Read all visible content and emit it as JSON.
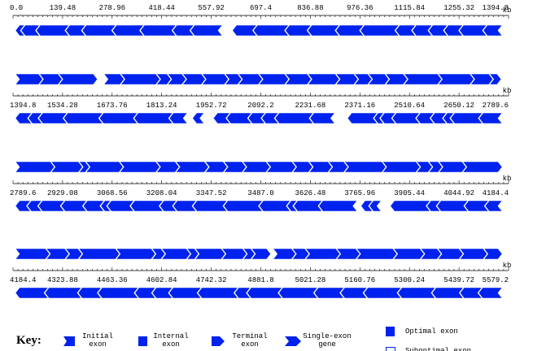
{
  "tracks": [
    {
      "unit": "kb",
      "ticks": [
        "0.0",
        "139.48",
        "278.96",
        "418.44",
        "557.92",
        "697.4",
        "836.88",
        "976.36",
        "1115.84",
        "1255.32",
        "1394.8"
      ]
    },
    {
      "unit": "kb",
      "ticks": [
        "1394.8",
        "1534.28",
        "1673.76",
        "1813.24",
        "1952.72",
        "2092.2",
        "2231.68",
        "2371.16",
        "2510.64",
        "2650.12",
        "2789.6"
      ]
    },
    {
      "unit": "kb",
      "ticks": [
        "2789.6",
        "2929.08",
        "3068.56",
        "3208.04",
        "3347.52",
        "3487.0",
        "3626.48",
        "3765.96",
        "3905.44",
        "4044.92",
        "4184.4"
      ]
    },
    {
      "unit": "kb",
      "ticks": [
        "4184.4",
        "4323.88",
        "4463.36",
        "4602.84",
        "4742.32",
        "4881.8",
        "5021.28",
        "5160.76",
        "5300.24",
        "5439.72",
        "5579.2"
      ]
    }
  ],
  "key": {
    "title": "Key:",
    "items": [
      {
        "lines": [
          "Initial",
          "exon"
        ]
      },
      {
        "lines": [
          "Internal",
          "exon"
        ]
      },
      {
        "lines": [
          "Terminal",
          "exon"
        ]
      },
      {
        "lines": [
          "Single-exon",
          "gene"
        ]
      },
      {
        "lines": [
          "Optimal exon"
        ]
      },
      {
        "lines": [
          "Suboptimal exon"
        ]
      }
    ]
  }
}
